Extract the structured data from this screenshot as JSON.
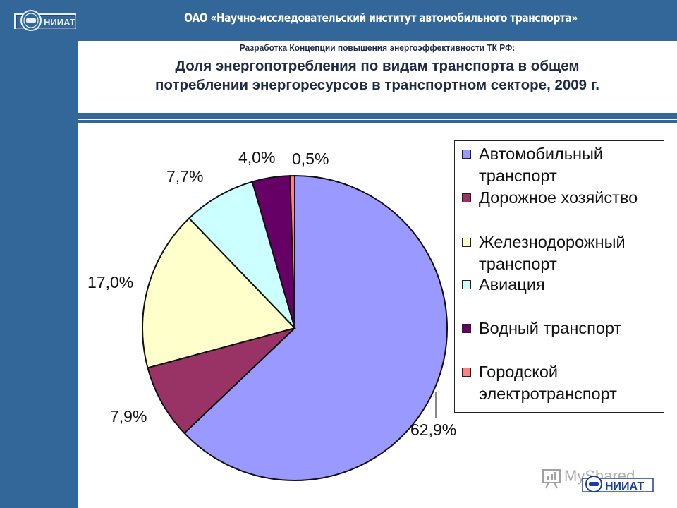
{
  "header": {
    "logo_text": "НИИАТ",
    "title": "ОАО «Научно-исследовательский институт автомобильного транспорта»"
  },
  "slide": {
    "subtitle": "Разработка Концепции повышения энергоэффективности ТК РФ:",
    "title_line1": "Доля энергопотребления по видам транспорта в общем",
    "title_line2": "потреблении энергоресурсов в транспортном секторе, 2009 г."
  },
  "footer": {
    "watermark_text": "MyShared",
    "logo_text": "НИИАТ"
  },
  "colors": {
    "brand_blue": "#336699",
    "title_text": "#1f2a44"
  },
  "chart_data": {
    "type": "pie",
    "title": "Доля энергопотребления по видам транспорта в общем потреблении энергоресурсов в транспортном секторе, 2009 г.",
    "categories": [
      "Автомобильный транспорт",
      "Дорожное хозяйство",
      "Железнодорожный транспорт",
      "Авиация",
      "Водный транспорт",
      "Городской электротранспорт"
    ],
    "values": [
      62.9,
      7.9,
      17.0,
      7.7,
      4.0,
      0.5
    ],
    "labels": [
      "62,9%",
      "7,9%",
      "17,0%",
      "7,7%",
      "4,0%",
      "0,5%"
    ],
    "colors": [
      "#9999ff",
      "#993366",
      "#ffffcc",
      "#ccffff",
      "#660066",
      "#ff8080"
    ],
    "legend_position": "right",
    "start_angle": "12 o'clock, clockwise",
    "legend": [
      {
        "line1": "Автомобильный",
        "line2": "транспорт",
        "color": "#9999ff"
      },
      {
        "line1": "Дорожное хозяйство",
        "line2": "",
        "color": "#993366"
      },
      {
        "line1": "Железнодорожный",
        "line2": "транспорт",
        "color": "#ffffcc"
      },
      {
        "line1": "Авиация",
        "line2": "",
        "color": "#ccffff"
      },
      {
        "line1": "Водный транспорт",
        "line2": "",
        "color": "#660066"
      },
      {
        "line1": "Городской",
        "line2": "электротранспорт",
        "color": "#ff8080"
      }
    ]
  }
}
